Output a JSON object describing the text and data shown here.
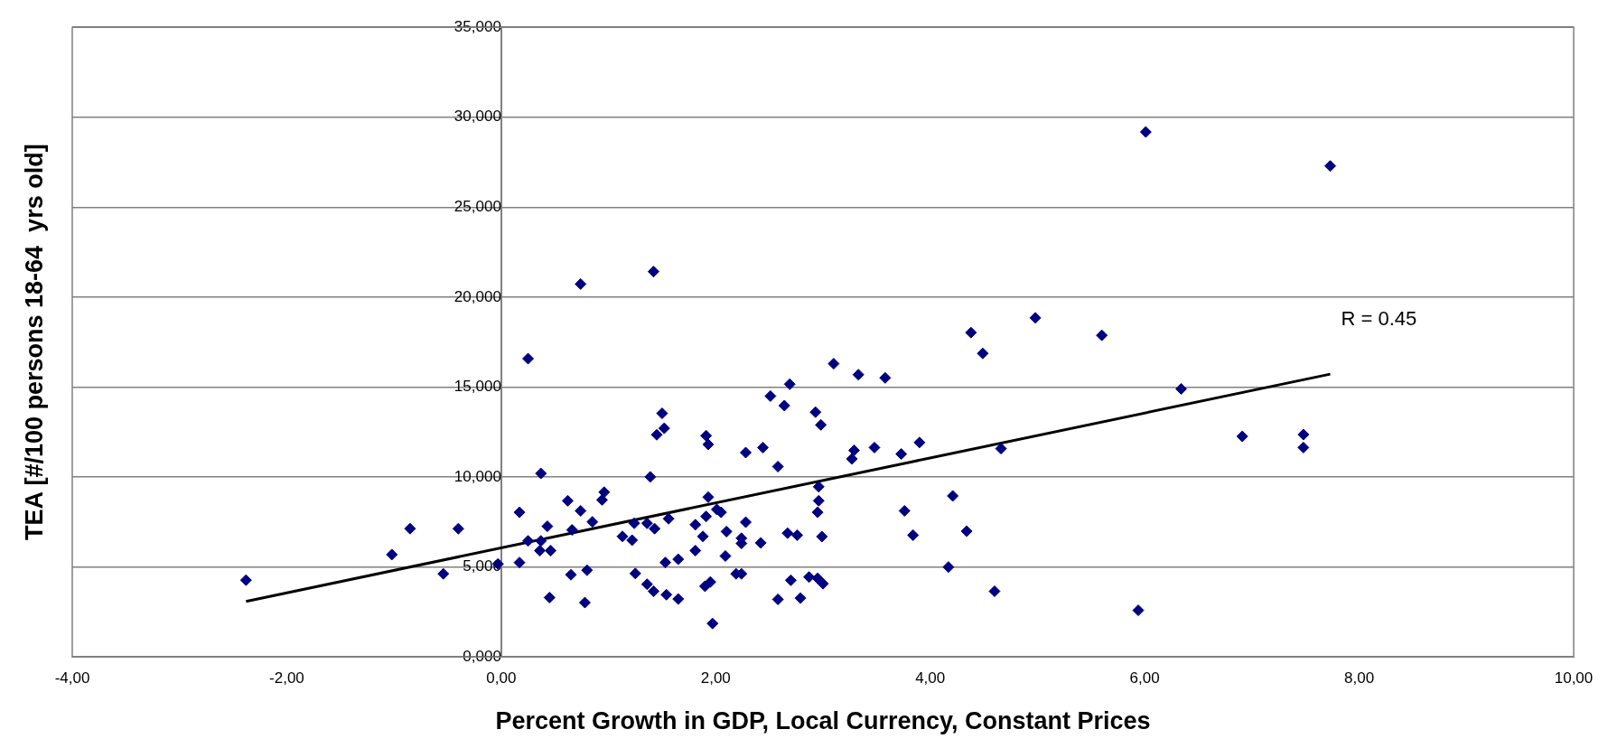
{
  "chart_data": {
    "type": "scatter",
    "xlabel": "Percent Growth in GDP, Local Currency, Constant Prices",
    "ylabel": "TEA [#/100 persons 18-64  yrs old]",
    "xlim": [
      -4,
      10
    ],
    "xticks": [
      {
        "value": -4,
        "label": "-4,00"
      },
      {
        "value": -2,
        "label": "-2,00"
      },
      {
        "value": 0,
        "label": "0,00"
      },
      {
        "value": 2,
        "label": "2,00"
      },
      {
        "value": 4,
        "label": "4,00"
      },
      {
        "value": 6,
        "label": "6,00"
      },
      {
        "value": 8,
        "label": "8,00"
      },
      {
        "value": 10,
        "label": "10,00"
      }
    ],
    "ylim": [
      0,
      35
    ],
    "yticks": [
      {
        "value": 0,
        "label": "0,000"
      },
      {
        "value": 5,
        "label": "5,000"
      },
      {
        "value": 10,
        "label": "10,000"
      },
      {
        "value": 15,
        "label": "15,000"
      },
      {
        "value": 20,
        "label": "20,000"
      },
      {
        "value": 25,
        "label": "25,000"
      },
      {
        "value": 30,
        "label": "30,000"
      },
      {
        "value": 35,
        "label": "35,000"
      }
    ],
    "grid": "y",
    "legend": false,
    "marker": "diamond",
    "annotations": [
      {
        "text": "R = 0.45",
        "x": 7.73,
        "y": 15.72
      }
    ],
    "series": [
      {
        "color": "#000080",
        "x": [
          -2.38,
          -1.02,
          -0.85,
          -0.54,
          -0.4,
          -0.03,
          0.74,
          1.42,
          0.25,
          1.5,
          1.52,
          1.45,
          1.91,
          1.93,
          0.37,
          1.39,
          0.96,
          0.94,
          0.62,
          0.17,
          0.74,
          1.93,
          0.85,
          0.43,
          0.66,
          1.24,
          1.36,
          1.43,
          1.56,
          1.91,
          1.81,
          1.88,
          0.25,
          0.37,
          0.36,
          0.46,
          1.13,
          1.22,
          1.81,
          0.17,
          1.53,
          1.65,
          0.65,
          0.8,
          1.25,
          1.36,
          1.42,
          1.54,
          1.65,
          0.45,
          0.78,
          1.9,
          1.95,
          1.97,
          2.01,
          2.05,
          2.28,
          2.44,
          2.58,
          2.51,
          2.64,
          2.69,
          3.1,
          3.33,
          3.58,
          2.93,
          2.98,
          3.29,
          3.27,
          3.48,
          3.73,
          3.9,
          2.96,
          2.96,
          2.95,
          2.28,
          2.1,
          2.24,
          2.24,
          2.42,
          2.67,
          2.76,
          2.99,
          3.76,
          3.84,
          2.09,
          2.19,
          2.24,
          2.7,
          2.87,
          2.95,
          3.0,
          2.58,
          2.79,
          6.01,
          4.38,
          4.49,
          4.98,
          5.6,
          4.66,
          4.21,
          4.34,
          4.17,
          4.6,
          5.94,
          7.73,
          6.34,
          6.91,
          7.48,
          7.48
        ],
        "values": [
          4.27,
          5.69,
          7.13,
          4.62,
          7.13,
          5.17,
          20.73,
          21.42,
          16.58,
          13.54,
          12.71,
          12.35,
          12.3,
          11.81,
          10.2,
          10.01,
          9.16,
          8.73,
          8.68,
          8.04,
          8.12,
          8.88,
          7.51,
          7.26,
          7.06,
          7.43,
          7.43,
          7.13,
          7.68,
          7.81,
          7.35,
          6.7,
          6.45,
          6.45,
          5.91,
          5.91,
          6.7,
          6.49,
          5.91,
          5.25,
          5.25,
          5.43,
          4.57,
          4.82,
          4.64,
          4.04,
          3.65,
          3.46,
          3.22,
          3.3,
          3.02,
          3.93,
          4.17,
          1.86,
          8.2,
          8.04,
          11.36,
          11.64,
          10.58,
          14.5,
          13.97,
          15.16,
          16.3,
          15.69,
          15.51,
          13.61,
          12.9,
          11.48,
          11.01,
          11.64,
          11.28,
          11.92,
          9.46,
          8.68,
          8.04,
          7.49,
          6.97,
          6.6,
          6.31,
          6.34,
          6.88,
          6.77,
          6.69,
          8.12,
          6.77,
          5.61,
          4.62,
          4.62,
          4.26,
          4.44,
          4.37,
          4.07,
          3.2,
          3.27,
          29.18,
          18.03,
          16.87,
          18.85,
          17.88,
          11.58,
          8.95,
          6.99,
          5.0,
          3.65,
          2.59,
          27.29,
          14.9,
          12.26,
          12.36,
          11.64
        ]
      },
      {
        "type": "line",
        "color": "#000000",
        "marker": "none",
        "line_style": "solid",
        "x": [
          -2.38,
          7.73
        ],
        "values": [
          3.09,
          15.72
        ]
      }
    ]
  }
}
